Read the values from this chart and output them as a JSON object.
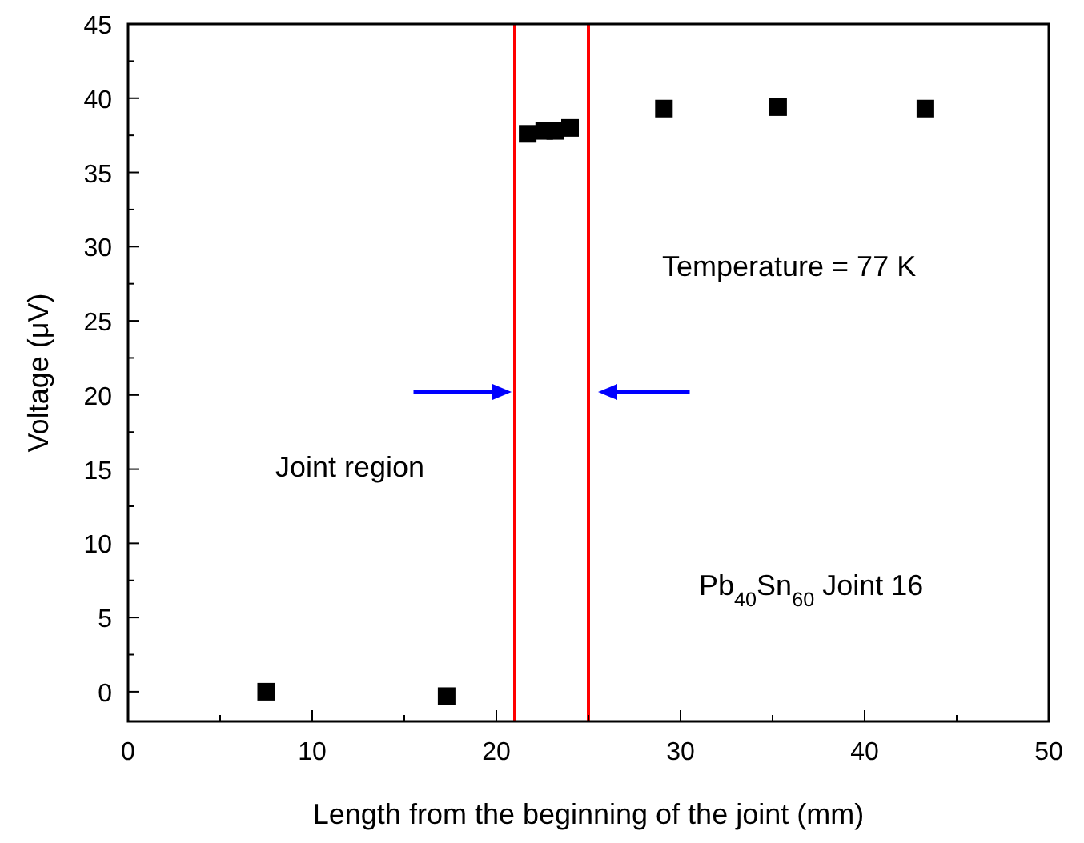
{
  "chart_data": {
    "type": "scatter",
    "xlabel": "Length from the beginning of the joint (mm)",
    "ylabel": "Voltage (μV)",
    "x": [
      7.5,
      17.3,
      21.7,
      22.6,
      23.2,
      24.0,
      29.1,
      35.3,
      43.3
    ],
    "values": [
      0,
      -0.3,
      37.6,
      37.8,
      37.8,
      38.0,
      39.3,
      39.4,
      39.3
    ],
    "color": "#000000",
    "marker": "square",
    "xlim": [
      0,
      50
    ],
    "xticks": [
      0,
      10,
      20,
      30,
      40,
      50
    ],
    "ylim": [
      -2,
      45
    ],
    "yticks": [
      0,
      5,
      10,
      15,
      20,
      25,
      30,
      35,
      40,
      45
    ],
    "ref_lines": [
      {
        "axis": "x",
        "value": 21,
        "color": "#ff0000"
      },
      {
        "axis": "x",
        "value": 25,
        "color": "#ff0000"
      }
    ],
    "annotations": [
      "Temperature = 77 K",
      "Joint region",
      "Pb$_{40}$Sn$_{60}$ Joint 16"
    ]
  }
}
